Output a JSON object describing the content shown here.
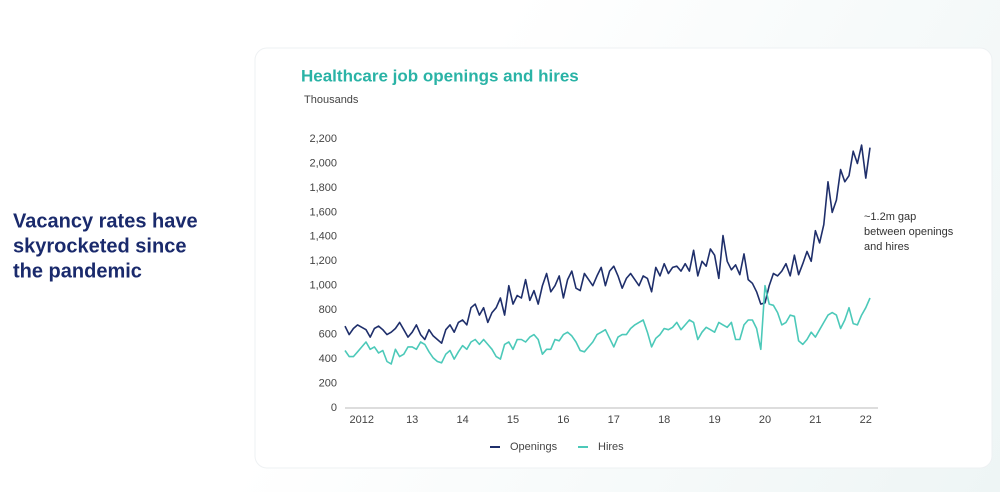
{
  "slide": {
    "headline_lines": [
      "Vacancy rates have",
      "skyrocketed since",
      "the pandemic"
    ]
  },
  "chart_data": {
    "type": "line",
    "title": "Healthcare job openings and hires",
    "y_label": "Thousands",
    "annotation_lines": [
      "~1.2m gap",
      "between openings",
      "and hires"
    ],
    "categories": [
      null,
      null,
      null,
      null,
      "2012",
      null,
      null,
      null,
      null,
      null,
      null,
      null,
      null,
      null,
      null,
      null,
      "13",
      null,
      null,
      null,
      null,
      null,
      null,
      null,
      null,
      null,
      null,
      null,
      "14",
      null,
      null,
      null,
      null,
      null,
      null,
      null,
      null,
      null,
      null,
      null,
      "15",
      null,
      null,
      null,
      null,
      null,
      null,
      null,
      null,
      null,
      null,
      null,
      "16",
      null,
      null,
      null,
      null,
      null,
      null,
      null,
      null,
      null,
      null,
      null,
      "17",
      null,
      null,
      null,
      null,
      null,
      null,
      null,
      null,
      null,
      null,
      null,
      "18",
      null,
      null,
      null,
      null,
      null,
      null,
      null,
      null,
      null,
      null,
      null,
      "19",
      null,
      null,
      null,
      null,
      null,
      null,
      null,
      null,
      null,
      null,
      null,
      "20",
      null,
      null,
      null,
      null,
      null,
      null,
      null,
      null,
      null,
      null,
      null,
      "21",
      null,
      null,
      null,
      null,
      null,
      null,
      null,
      null,
      null,
      null,
      null,
      "22",
      null
    ],
    "series": [
      {
        "name": "Openings",
        "color": "#1f2f6b",
        "values": [
          670,
          600,
          650,
          680,
          660,
          640,
          580,
          650,
          670,
          640,
          600,
          620,
          650,
          700,
          640,
          580,
          620,
          680,
          600,
          560,
          640,
          590,
          560,
          530,
          640,
          680,
          620,
          700,
          720,
          680,
          820,
          850,
          760,
          820,
          700,
          780,
          820,
          900,
          760,
          1000,
          850,
          920,
          900,
          1050,
          880,
          960,
          850,
          1000,
          1100,
          950,
          1000,
          1080,
          900,
          1050,
          1120,
          980,
          960,
          1100,
          1050,
          1000,
          1080,
          1150,
          1000,
          1120,
          1160,
          1080,
          980,
          1060,
          1100,
          1050,
          1000,
          1080,
          1060,
          950,
          1150,
          1080,
          1180,
          1100,
          1150,
          1160,
          1120,
          1180,
          1120,
          1290,
          1080,
          1200,
          1160,
          1300,
          1250,
          1060,
          1410,
          1200,
          1130,
          1170,
          1090,
          1260,
          1050,
          1020,
          950,
          850,
          860,
          1000,
          1100,
          1080,
          1120,
          1180,
          1080,
          1250,
          1090,
          1180,
          1280,
          1200,
          1450,
          1350,
          1500,
          1850,
          1600,
          1700,
          1950,
          1850,
          1900,
          2100,
          2000,
          2150,
          1880,
          2130
        ]
      },
      {
        "name": "Hires",
        "color": "#4cc9b9",
        "values": [
          470,
          420,
          420,
          460,
          500,
          540,
          480,
          500,
          450,
          470,
          380,
          360,
          480,
          420,
          440,
          500,
          500,
          480,
          540,
          520,
          460,
          410,
          380,
          370,
          440,
          470,
          400,
          460,
          510,
          480,
          540,
          560,
          520,
          560,
          520,
          480,
          420,
          400,
          520,
          540,
          480,
          560,
          560,
          540,
          580,
          600,
          560,
          440,
          480,
          480,
          560,
          550,
          600,
          620,
          590,
          540,
          470,
          460,
          500,
          540,
          600,
          620,
          640,
          570,
          500,
          580,
          600,
          600,
          650,
          680,
          700,
          720,
          620,
          500,
          570,
          600,
          650,
          640,
          660,
          700,
          640,
          680,
          720,
          700,
          560,
          620,
          660,
          640,
          620,
          700,
          680,
          660,
          700,
          560,
          560,
          680,
          720,
          720,
          650,
          480,
          1000,
          850,
          840,
          780,
          680,
          700,
          760,
          750,
          550,
          520,
          560,
          620,
          580,
          640,
          700,
          760,
          780,
          760,
          650,
          720,
          820,
          690,
          680,
          760,
          820,
          900
        ]
      }
    ],
    "ylim": [
      0,
      2200
    ],
    "yticks": [
      0,
      200,
      400,
      600,
      800,
      {
        "value": 1000,
        "label": "1,000"
      },
      {
        "value": 1200,
        "label": "1,200"
      },
      {
        "value": 1400,
        "label": "1,400"
      },
      {
        "value": 1600,
        "label": "1,600"
      },
      {
        "value": 1800,
        "label": "1,800"
      },
      {
        "value": 2000,
        "label": "2,000"
      },
      {
        "value": 2200,
        "label": "2,200"
      }
    ],
    "grid": false,
    "legend": "bottom"
  }
}
